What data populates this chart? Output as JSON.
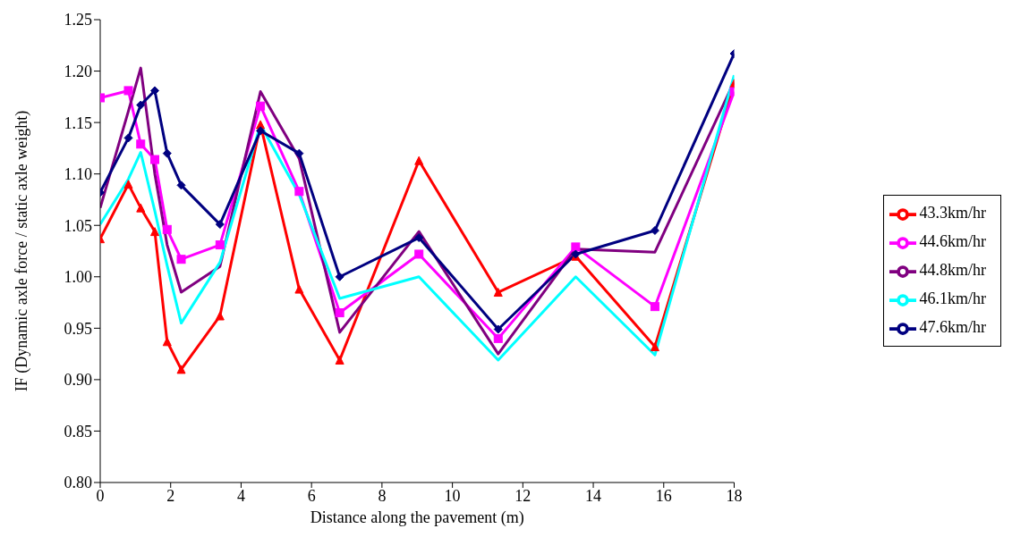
{
  "chart_data": {
    "type": "line",
    "xlabel": "Distance along the pavement (m)",
    "ylabel": "IF (Dynamic axle force / static axle weight)",
    "x": [
      0,
      0.8,
      1.15,
      1.55,
      1.9,
      2.3,
      3.4,
      4.55,
      5.65,
      6.8,
      9.05,
      11.3,
      13.5,
      15.75,
      18
    ],
    "series": [
      {
        "name": "43.3km/hr",
        "color": "#ff0000",
        "marker": "triangle",
        "values": [
          1.037,
          1.09,
          1.067,
          1.044,
          0.937,
          0.91,
          0.962,
          1.148,
          0.988,
          0.919,
          1.113,
          0.985,
          1.02,
          0.932,
          1.188
        ]
      },
      {
        "name": "44.6km/hr",
        "color": "#ff00ff",
        "marker": "square",
        "values": [
          1.174,
          1.181,
          1.129,
          1.114,
          1.046,
          1.017,
          1.031,
          1.166,
          1.083,
          0.965,
          1.022,
          0.94,
          1.029,
          0.971,
          1.18
        ]
      },
      {
        "name": "44.8km/hr",
        "color": "#800080",
        "marker": "none",
        "values": [
          1.067,
          1.161,
          1.203,
          1.1,
          1.031,
          0.985,
          1.01,
          1.18,
          1.115,
          0.946,
          1.044,
          0.925,
          1.027,
          1.024,
          1.19
        ]
      },
      {
        "name": "46.1km/hr",
        "color": "#00ffff",
        "marker": "none",
        "values": [
          1.051,
          1.095,
          1.121,
          1.064,
          1.011,
          0.955,
          1.014,
          1.148,
          1.08,
          0.979,
          1.0,
          0.919,
          1.0,
          0.924,
          1.196
        ]
      },
      {
        "name": "47.6km/hr",
        "color": "#000080",
        "marker": "diamond",
        "values": [
          1.082,
          1.135,
          1.167,
          1.181,
          1.12,
          1.089,
          1.051,
          1.142,
          1.12,
          1.0,
          1.038,
          0.949,
          1.022,
          1.045,
          1.217
        ]
      }
    ],
    "xlim": [
      0,
      18
    ],
    "xticks": [
      0,
      2,
      4,
      6,
      8,
      10,
      12,
      14,
      16,
      18
    ],
    "ylim": [
      0.8,
      1.25
    ],
    "yticks": [
      {
        "value": 0.8,
        "label": "0.80"
      },
      {
        "value": 0.85,
        "label": "0.85"
      },
      {
        "value": 0.9,
        "label": "0.90"
      },
      {
        "value": 0.95,
        "label": "0.95"
      },
      {
        "value": 1.0,
        "label": "1.00"
      },
      {
        "value": 1.05,
        "label": "1.05"
      },
      {
        "value": 1.1,
        "label": "1.10"
      },
      {
        "value": 1.15,
        "label": "1.15"
      },
      {
        "value": 1.2,
        "label": "1.20"
      },
      {
        "value": 1.25,
        "label": "1.25"
      }
    ],
    "grid": false,
    "legend": "right",
    "line_style": "solid"
  }
}
